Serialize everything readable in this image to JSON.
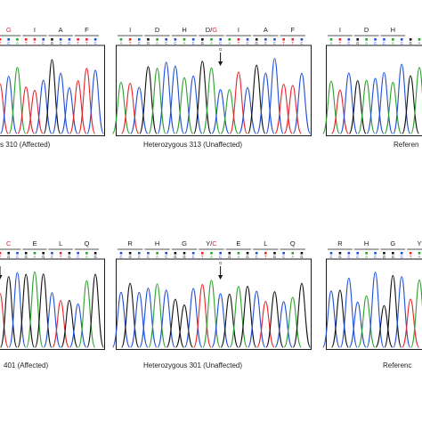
{
  "panels": [
    {
      "caption": "s 310 (Affected)",
      "amino_acids": [
        {
          "label": "G",
          "color": "#e8242b"
        },
        {
          "label": "I",
          "color": "#1a1a1a"
        },
        {
          "label": "A",
          "color": "#1a1a1a"
        },
        {
          "label": "F",
          "color": "#1a1a1a"
        }
      ],
      "nucleotides": "TCATTCGCCTTC",
      "mutation_arrow": false
    },
    {
      "caption": "Heterozygous 313 (Unaffected)",
      "amino_acids": [
        {
          "label": "I",
          "color": "#1a1a1a"
        },
        {
          "label": "D",
          "color": "#1a1a1a"
        },
        {
          "label": "H",
          "color": "#1a1a1a"
        },
        {
          "label": "D/",
          "color": "#1a1a1a",
          "suffix": "G",
          "suffix_color": "#e8242b"
        },
        {
          "label": "I",
          "color": "#1a1a1a"
        },
        {
          "label": "A",
          "color": "#1a1a1a"
        },
        {
          "label": "F",
          "color": "#1a1a1a"
        }
      ],
      "nucleotides": "ATCGACCACGACATCGCCTTC",
      "mutation_arrow": true,
      "mutation_letter": "G"
    },
    {
      "caption": "Referen",
      "amino_acids": [
        {
          "label": "I",
          "color": "#1a1a1a"
        },
        {
          "label": "D",
          "color": "#1a1a1a"
        },
        {
          "label": "H",
          "color": "#1a1a1a"
        }
      ],
      "nucleotides": "ATCGACCACGA",
      "mutation_arrow": false
    },
    {
      "caption": "401 (Affected)",
      "amino_acids": [
        {
          "label": "C",
          "color": "#e8242b"
        },
        {
          "label": "E",
          "color": "#1a1a1a"
        },
        {
          "label": "L",
          "color": "#1a1a1a"
        },
        {
          "label": "Q",
          "color": "#1a1a1a"
        }
      ],
      "nucleotides": "TGCGAGCTGCAG",
      "mutation_arrow": true,
      "mutation_letter": ""
    },
    {
      "caption": "Heterozygous 301 (Unaffected)",
      "amino_acids": [
        {
          "label": "R",
          "color": "#1a1a1a"
        },
        {
          "label": "H",
          "color": "#1a1a1a"
        },
        {
          "label": "G",
          "color": "#1a1a1a"
        },
        {
          "label": "Y/",
          "color": "#1a1a1a",
          "suffix": "C",
          "suffix_color": "#e8242b"
        },
        {
          "label": "E",
          "color": "#1a1a1a"
        },
        {
          "label": "L",
          "color": "#1a1a1a"
        },
        {
          "label": "Q",
          "color": "#1a1a1a"
        }
      ],
      "nucleotides": "CGCCACGGCTACGAGCTGCAG",
      "mutation_arrow": true,
      "mutation_letter": "G"
    },
    {
      "caption": "Referenc",
      "amino_acids": [
        {
          "label": "R",
          "color": "#1a1a1a"
        },
        {
          "label": "H",
          "color": "#1a1a1a"
        },
        {
          "label": "G",
          "color": "#1a1a1a"
        },
        {
          "label": "Y",
          "color": "#1a1a1a"
        }
      ],
      "nucleotides": "CGCCACGGCTA",
      "mutation_arrow": false
    }
  ],
  "base_colors": {
    "A": "#2ca02c",
    "C": "#1f4fd6",
    "G": "#111111",
    "T": "#e8242b"
  }
}
